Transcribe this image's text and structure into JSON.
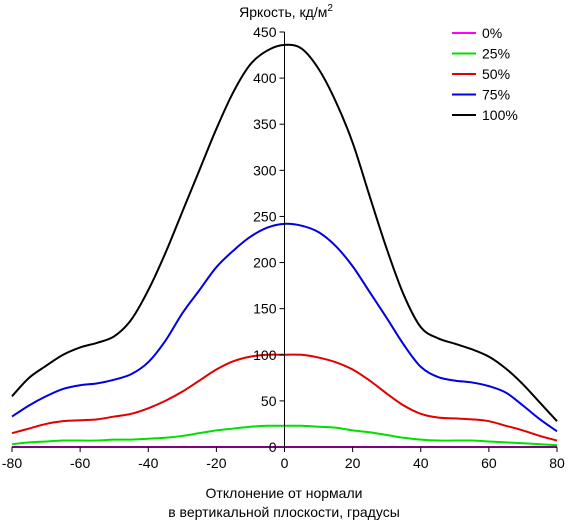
{
  "chart_data": {
    "type": "line",
    "title": "Яркость, кд/м",
    "title_superscript": "2",
    "xlabel_line1": "Отклонение от нормали",
    "xlabel_line2": "в вертикальной плоскости, градусы",
    "xlim": [
      -80,
      80
    ],
    "ylim": [
      0,
      450
    ],
    "x_ticks": [
      -80,
      -60,
      -40,
      -20,
      0,
      20,
      40,
      60,
      80
    ],
    "y_ticks": [
      0,
      50,
      100,
      150,
      200,
      250,
      300,
      350,
      400,
      450
    ],
    "grid": false,
    "legend_position": "top-right",
    "x": [
      -80,
      -75,
      -70,
      -65,
      -60,
      -55,
      -50,
      -45,
      -40,
      -35,
      -30,
      -25,
      -20,
      -15,
      -10,
      -5,
      0,
      5,
      10,
      15,
      20,
      25,
      30,
      35,
      40,
      45,
      50,
      55,
      60,
      65,
      70,
      75,
      80
    ],
    "series": [
      {
        "name": "0%",
        "color": "#ff00ff",
        "values": [
          0,
          0,
          0,
          0,
          0,
          0,
          0,
          0,
          0,
          0,
          0,
          0,
          0,
          0,
          0,
          0,
          0,
          0,
          0,
          0,
          0,
          0,
          0,
          0,
          0,
          0,
          0,
          0,
          0,
          0,
          0,
          0,
          0
        ]
      },
      {
        "name": "25%",
        "color": "#00e000",
        "values": [
          3,
          5,
          6,
          7,
          7,
          7,
          8,
          8,
          9,
          10,
          12,
          15,
          18,
          20,
          22,
          23,
          23,
          23,
          22,
          21,
          18,
          16,
          13,
          10,
          8,
          7,
          7,
          7,
          6,
          5,
          4,
          3,
          2
        ]
      },
      {
        "name": "50%",
        "color": "#e00000",
        "values": [
          15,
          20,
          25,
          28,
          29,
          30,
          33,
          36,
          42,
          50,
          60,
          72,
          84,
          93,
          98,
          100,
          100,
          100,
          97,
          92,
          84,
          72,
          58,
          45,
          36,
          32,
          31,
          30,
          28,
          23,
          18,
          12,
          7
        ]
      },
      {
        "name": "75%",
        "color": "#0000e0",
        "values": [
          33,
          45,
          55,
          63,
          67,
          69,
          73,
          79,
          92,
          115,
          145,
          170,
          195,
          213,
          228,
          238,
          242,
          240,
          233,
          218,
          196,
          168,
          140,
          111,
          87,
          76,
          72,
          70,
          66,
          59,
          45,
          30,
          17
        ]
      },
      {
        "name": "100%",
        "color": "#000000",
        "values": [
          55,
          75,
          88,
          100,
          108,
          113,
          120,
          138,
          170,
          210,
          255,
          300,
          345,
          385,
          415,
          430,
          436,
          432,
          410,
          375,
          330,
          272,
          215,
          165,
          130,
          118,
          112,
          106,
          98,
          85,
          68,
          48,
          28
        ]
      }
    ]
  }
}
